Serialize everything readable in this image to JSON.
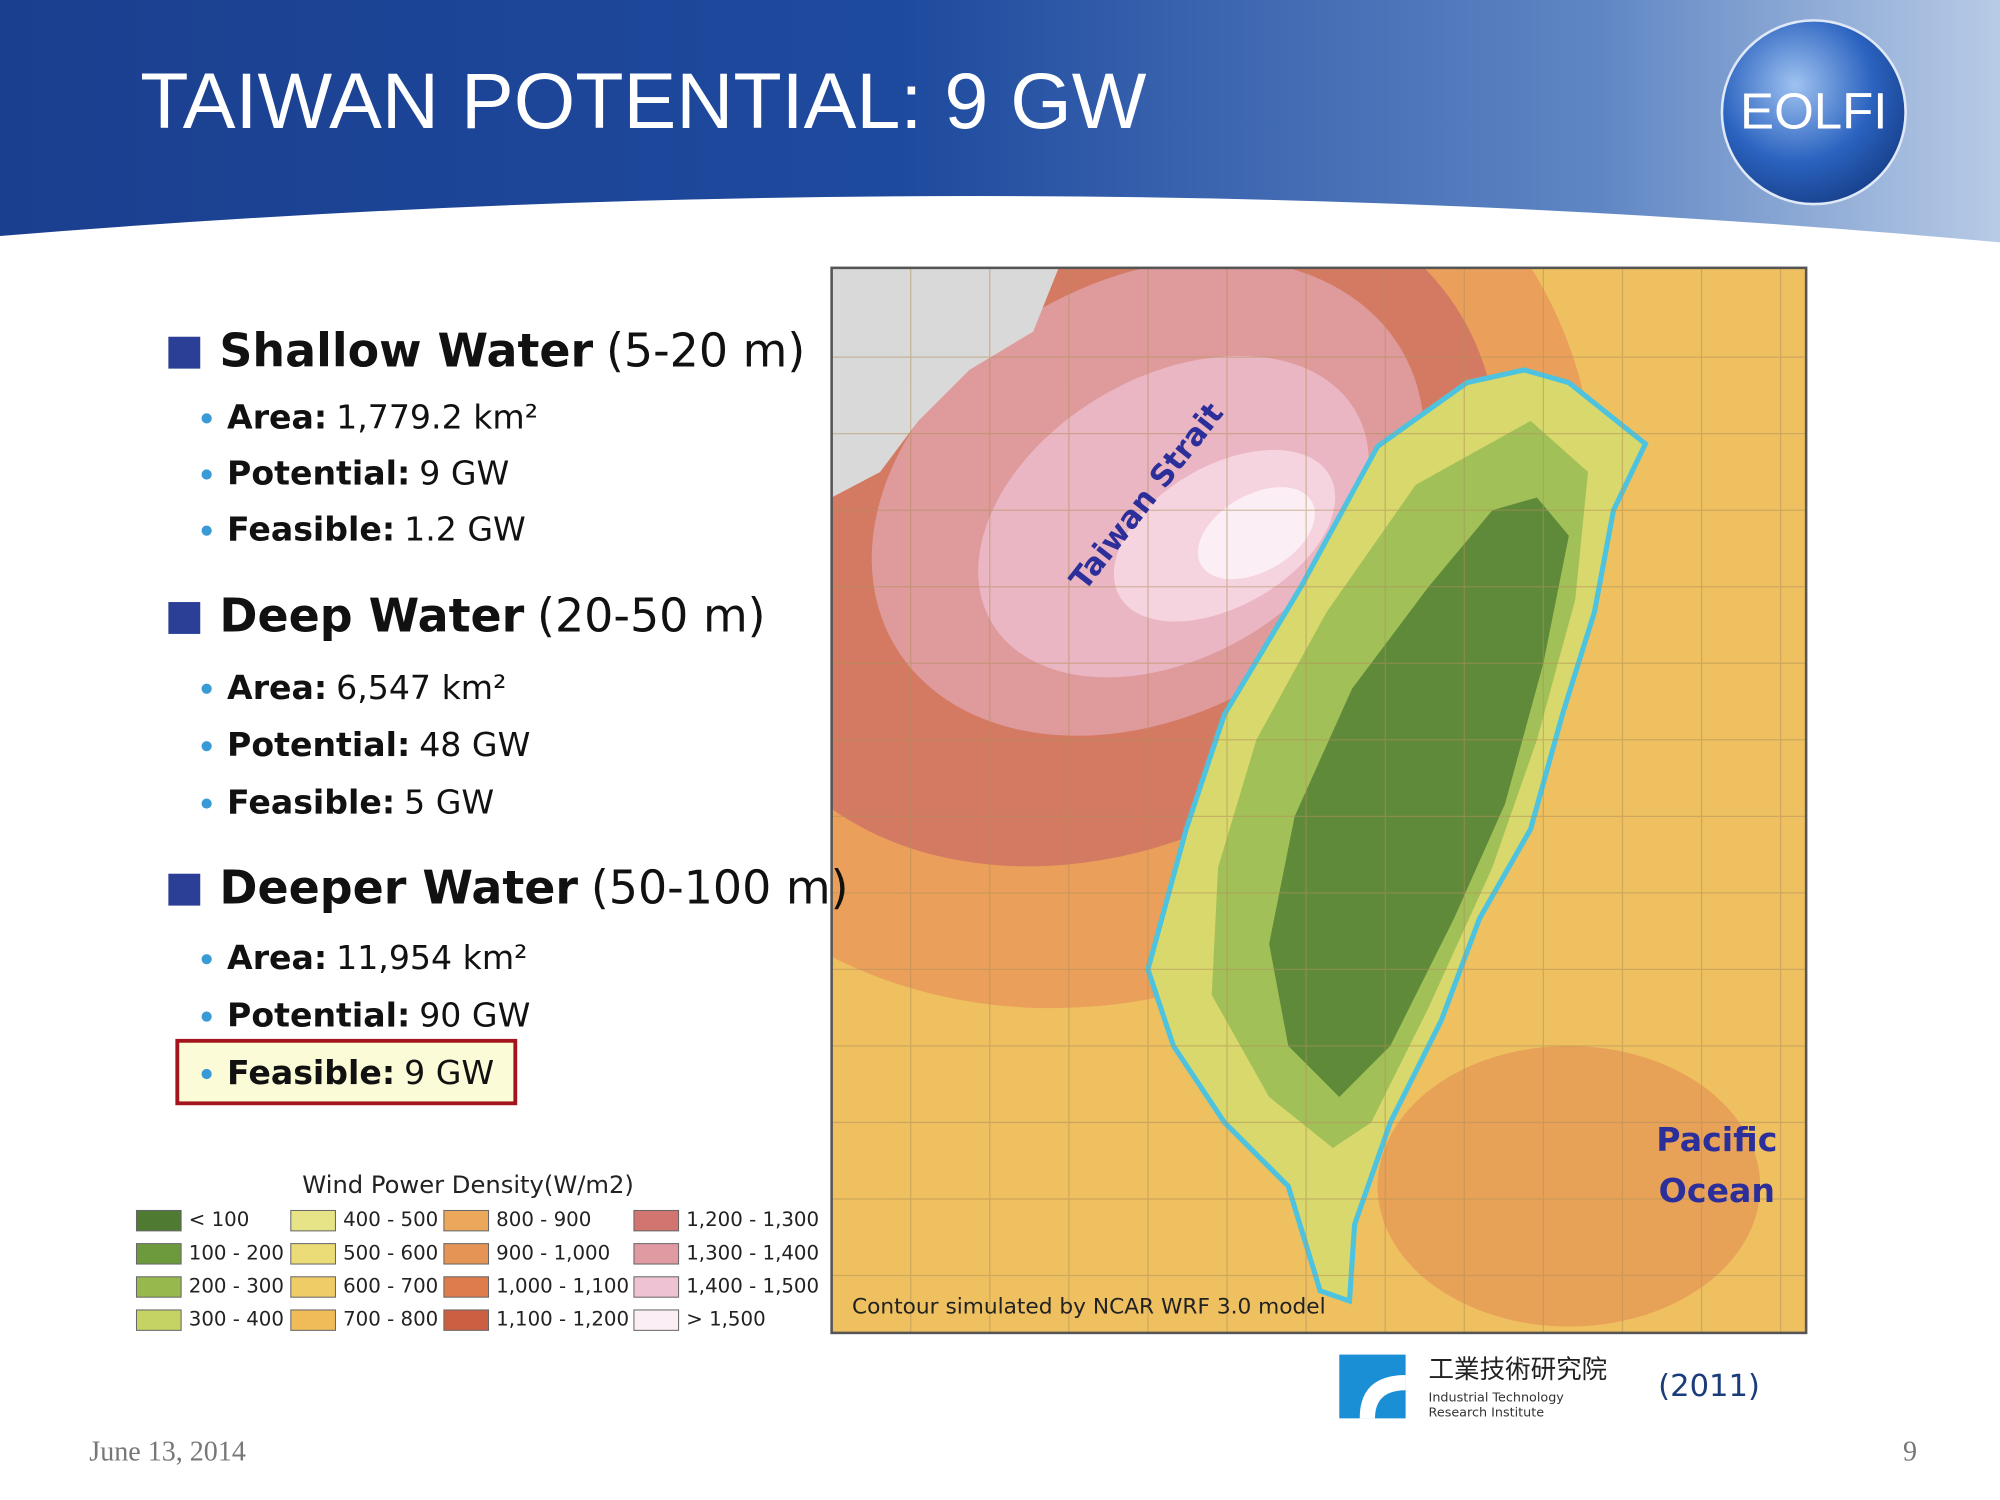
{
  "header": {
    "title": "TAIWAN POTENTIAL: 9 GW",
    "logo": "EOLFI"
  },
  "sections": [
    {
      "heading": "Shallow Water",
      "range": "(5-20 m)",
      "bullets": [
        {
          "label": "Area:",
          "value": "1,779.2 km²"
        },
        {
          "label": "Potential:",
          "value": "9 GW"
        },
        {
          "label": "Feasible:",
          "value": "1.2 GW"
        }
      ]
    },
    {
      "heading": "Deep Water",
      "range": "(20-50 m)",
      "bullets": [
        {
          "label": "Area:",
          "value": "6,547 km²"
        },
        {
          "label": "Potential:",
          "value": "48 GW"
        },
        {
          "label": "Feasible:",
          "value": "5 GW"
        }
      ]
    },
    {
      "heading": "Deeper Water",
      "range": "(50-100 m)",
      "bullets": [
        {
          "label": "Area:",
          "value": "11,954 km²"
        },
        {
          "label": "Potential:",
          "value": "90 GW"
        },
        {
          "label": "Feasible:",
          "value": "9 GW"
        }
      ]
    }
  ],
  "legend": {
    "title": "Wind  Power Density(W/m2)",
    "items": [
      {
        "label": "< 100",
        "color": "#4f7a32"
      },
      {
        "label": "100 - 200",
        "color": "#6e9a3e"
      },
      {
        "label": "200 - 300",
        "color": "#96b84c"
      },
      {
        "label": "300 - 400",
        "color": "#c5d264"
      },
      {
        "label": "400 - 500",
        "color": "#e6e486"
      },
      {
        "label": "500 - 600",
        "color": "#ecdc78"
      },
      {
        "label": "600 - 700",
        "color": "#f0cc66"
      },
      {
        "label": "700 - 800",
        "color": "#f0bc58"
      },
      {
        "label": "800 - 900",
        "color": "#eca85a"
      },
      {
        "label": "900 - 1,000",
        "color": "#e69456"
      },
      {
        "label": "1,000 - 1,100",
        "color": "#de7c4c"
      },
      {
        "label": "1,100 - 1,200",
        "color": "#cc5f42"
      },
      {
        "label": "1,200 - 1,300",
        "color": "#d27470"
      },
      {
        "label": "1,300 - 1,400",
        "color": "#e09aa2"
      },
      {
        "label": "1,400 - 1,500",
        "color": "#eec2d2"
      },
      {
        "label": "> 1,500",
        "color": "#fbeef4"
      }
    ]
  },
  "map": {
    "strait": "Taiwan Strait",
    "ocean": [
      "Pacific",
      "Ocean"
    ],
    "caption": "Contour simulated by NCAR WRF 3.0 model"
  },
  "source": {
    "name_zh": "工業技術研究院",
    "name_en": [
      "Industrial Technology",
      "Research Institute"
    ],
    "year": "(2011)"
  },
  "footer": {
    "date": "June 13, 2014",
    "page": "9"
  }
}
